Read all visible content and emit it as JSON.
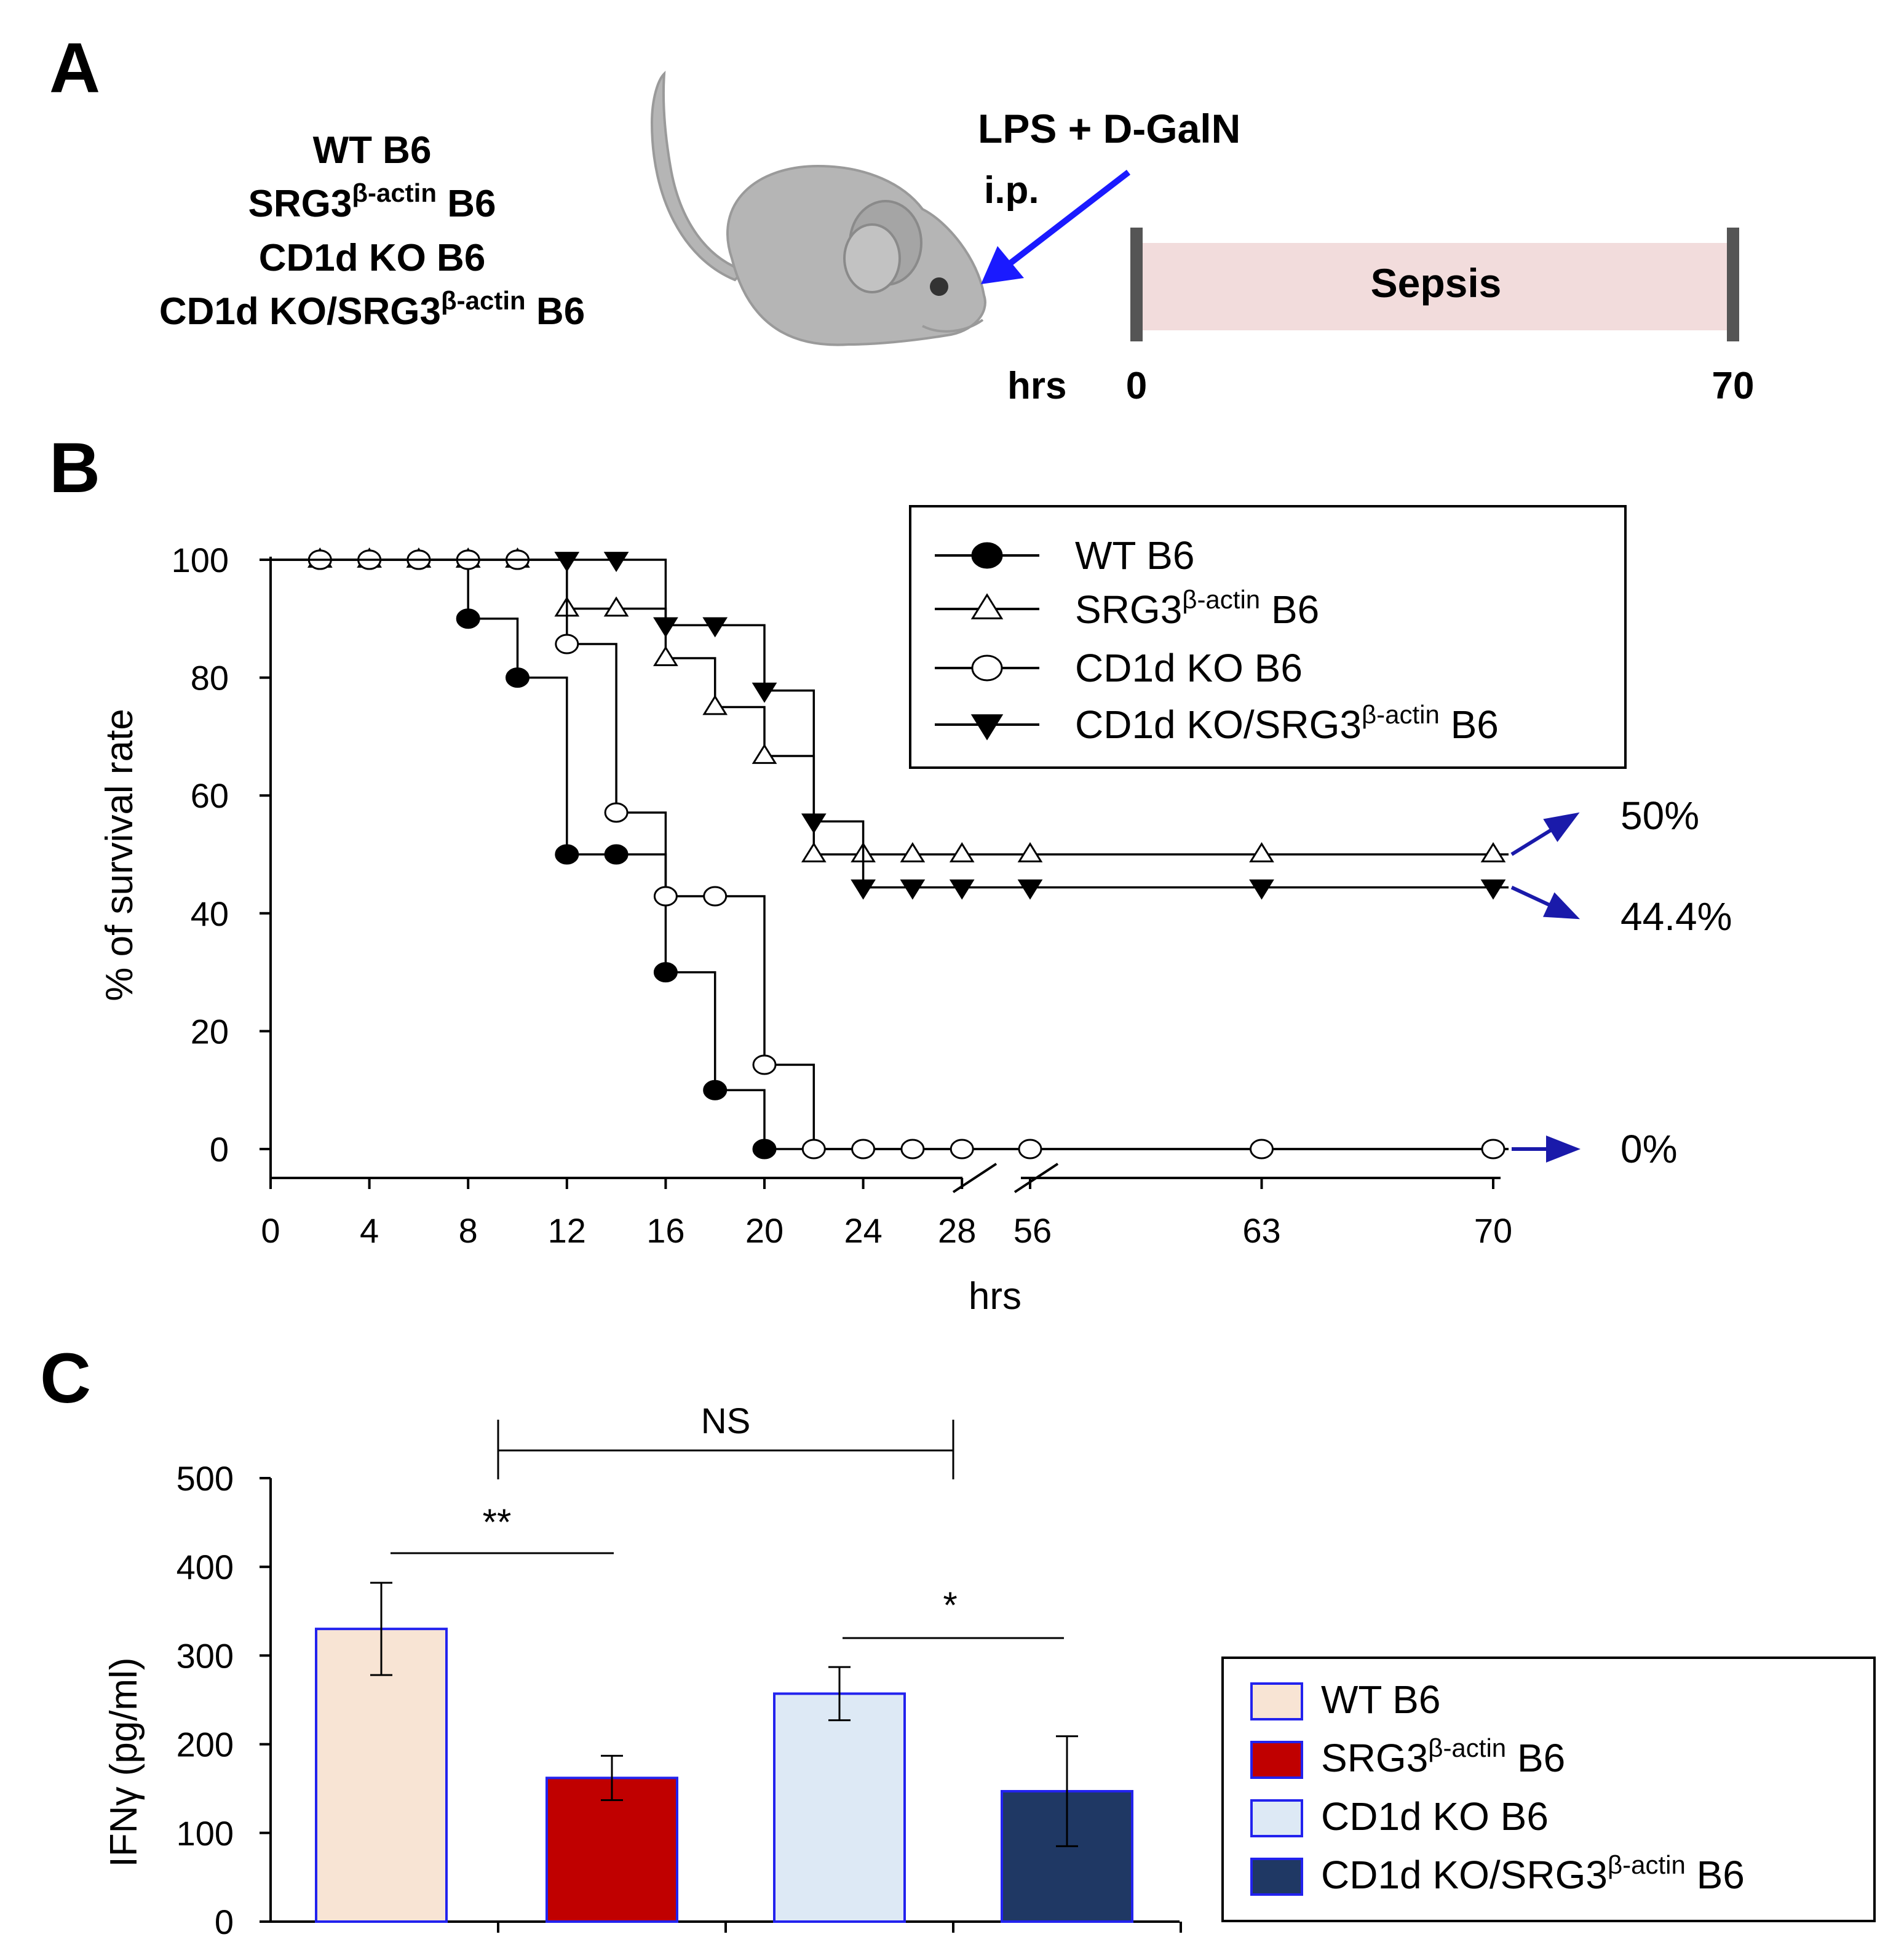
{
  "panel_labels": {
    "a": "A",
    "b": "B",
    "c": "C"
  },
  "panel_a": {
    "strains": [
      {
        "name": "WT B6"
      },
      {
        "name": "SRG3",
        "sup": "β-actin",
        "suffix": " B6"
      },
      {
        "name": "CD1d KO B6"
      },
      {
        "name": "CD1d KO/SRG3",
        "sup": "β-actin",
        "suffix": " B6"
      }
    ],
    "treatment": "LPS + D-GalN",
    "route": "i.p.",
    "phase_label": "Sepsis",
    "time_unit": "hrs",
    "time_start": "0",
    "time_end": "70",
    "colors": {
      "arrow": "#1a1aff",
      "sepsis_bar": "#f2dcdc",
      "bar_ends": "#555555",
      "mouse": "#b5b5b5"
    }
  },
  "chart_data": [
    {
      "type": "line",
      "subtype": "kaplan-meier",
      "title": "",
      "xlabel": "hrs",
      "ylabel": "% of survival rate",
      "x_ticks": [
        "0",
        "4",
        "8",
        "12",
        "16",
        "20",
        "24",
        "28",
        "56",
        "63",
        "70"
      ],
      "y_ticks": [
        "0",
        "20",
        "40",
        "60",
        "80",
        "100"
      ],
      "ylim": [
        0,
        100
      ],
      "x_axis_break": [
        28,
        56
      ],
      "legend_position": "top-right",
      "series": [
        {
          "name": "WT B6",
          "sup": "",
          "suffix": "",
          "marker": "circle-filled",
          "steps": [
            [
              0,
              100
            ],
            [
              8,
              90
            ],
            [
              10,
              80
            ],
            [
              12,
              50
            ],
            [
              16,
              30
            ],
            [
              18,
              10
            ],
            [
              20,
              0
            ]
          ],
          "markers": [
            [
              2,
              100
            ],
            [
              4,
              100
            ],
            [
              6,
              100
            ],
            [
              8,
              100
            ],
            [
              10,
              100
            ],
            [
              8,
              90
            ],
            [
              10,
              80
            ],
            [
              12,
              50
            ],
            [
              14,
              50
            ],
            [
              16,
              30
            ],
            [
              18,
              10
            ],
            [
              20,
              0
            ]
          ]
        },
        {
          "name": "SRG3",
          "sup": "β-actin",
          "suffix": " B6",
          "marker": "triangle-open",
          "steps": [
            [
              0,
              100
            ],
            [
              12,
              91.7
            ],
            [
              16,
              83.3
            ],
            [
              18,
              75
            ],
            [
              20,
              66.7
            ],
            [
              22,
              50
            ]
          ],
          "markers": [
            [
              2,
              100
            ],
            [
              4,
              100
            ],
            [
              6,
              100
            ],
            [
              8,
              100
            ],
            [
              10,
              100
            ],
            [
              12,
              91.7
            ],
            [
              14,
              91.7
            ],
            [
              16,
              83.3
            ],
            [
              18,
              75
            ],
            [
              20,
              66.7
            ],
            [
              22,
              50
            ],
            [
              24,
              50
            ],
            [
              26,
              50
            ],
            [
              28,
              50
            ],
            [
              56,
              50
            ],
            [
              63,
              50
            ],
            [
              70,
              50
            ]
          ]
        },
        {
          "name": "CD1d KO B6",
          "sup": "",
          "suffix": "",
          "marker": "circle-open",
          "steps": [
            [
              0,
              100
            ],
            [
              12,
              85.7
            ],
            [
              14,
              57.1
            ],
            [
              16,
              42.9
            ],
            [
              20,
              14.3
            ],
            [
              22,
              0
            ]
          ],
          "markers": [
            [
              2,
              100
            ],
            [
              4,
              100
            ],
            [
              6,
              100
            ],
            [
              8,
              100
            ],
            [
              10,
              100
            ],
            [
              12,
              85.7
            ],
            [
              14,
              57.1
            ],
            [
              16,
              42.9
            ],
            [
              18,
              42.9
            ],
            [
              20,
              14.3
            ],
            [
              22,
              0
            ],
            [
              24,
              0
            ],
            [
              26,
              0
            ],
            [
              28,
              0
            ],
            [
              56,
              0
            ],
            [
              63,
              0
            ],
            [
              70,
              0
            ]
          ]
        },
        {
          "name": "CD1d KO/SRG3",
          "sup": "β-actin",
          "suffix": " B6",
          "marker": "triangle-down-filled",
          "steps": [
            [
              0,
              100
            ],
            [
              16,
              88.9
            ],
            [
              20,
              77.8
            ],
            [
              22,
              55.6
            ],
            [
              24,
              44.4
            ]
          ],
          "markers": [
            [
              12,
              100
            ],
            [
              14,
              100
            ],
            [
              16,
              88.9
            ],
            [
              18,
              88.9
            ],
            [
              20,
              77.8
            ],
            [
              22,
              55.6
            ],
            [
              24,
              44.4
            ],
            [
              26,
              44.4
            ],
            [
              28,
              44.4
            ],
            [
              56,
              44.4
            ],
            [
              63,
              44.4
            ],
            [
              70,
              44.4
            ]
          ]
        }
      ],
      "endpoints": [
        {
          "label": "50%",
          "value": 50
        },
        {
          "label": "44.4%",
          "value": 44.4
        },
        {
          "label": "0%",
          "value": 0
        }
      ],
      "arrow_color": "#1a1aaa"
    },
    {
      "type": "bar",
      "title": "",
      "xlabel": "",
      "ylabel": "IFNγ (pg/ml)",
      "ylim": [
        0,
        500
      ],
      "y_ticks": [
        "0",
        "100",
        "200",
        "300",
        "400",
        "500"
      ],
      "legend_position": "bottom-right",
      "categories": [
        "WT B6",
        "SRG3β-actin B6",
        "CD1d KO B6",
        "CD1d KO/SRG3β-actin B6"
      ],
      "legend": [
        {
          "name": "WT B6",
          "sup": "",
          "suffix": ""
        },
        {
          "name": "SRG3",
          "sup": "β-actin",
          "suffix": " B6"
        },
        {
          "name": "CD1d KO B6",
          "sup": "",
          "suffix": ""
        },
        {
          "name": "CD1d KO/SRG3",
          "sup": "β-actin",
          "suffix": " B6"
        }
      ],
      "values": [
        330,
        162,
        257,
        147
      ],
      "errors": [
        52,
        25,
        30,
        62
      ],
      "colors": [
        "#f8e4d4",
        "#c00000",
        "#dde9f5",
        "#1f3864"
      ],
      "bar_border": "#2222ee",
      "significance": [
        {
          "label": "**",
          "from": 0,
          "to": 1
        },
        {
          "label": "*",
          "from": 2,
          "to": 3
        },
        {
          "label": "NS",
          "from": 0,
          "to": 2
        }
      ]
    }
  ]
}
